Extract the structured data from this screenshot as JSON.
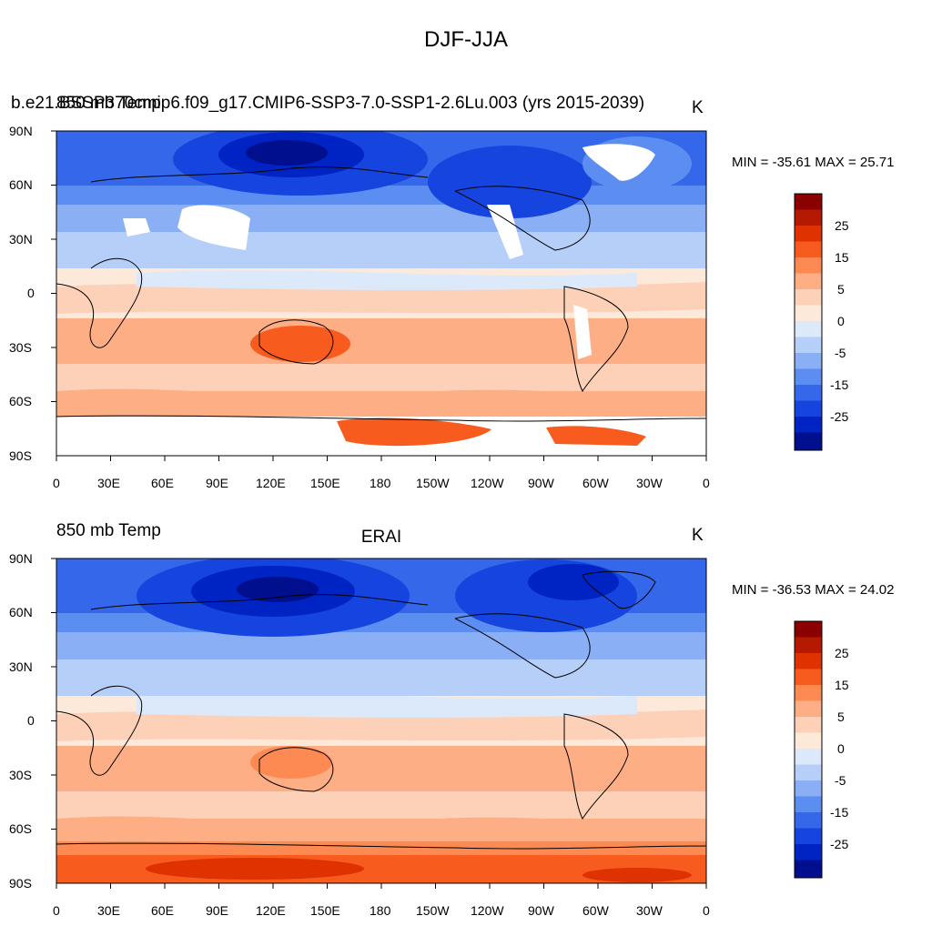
{
  "title": "DJF-JJA",
  "panels": [
    {
      "left_label": "850 mb Temp",
      "left_label_overlap": "b.e21.BSSP370cmip6.f09_g17.CMIP6-SSP3-7.0-SSP1-2.6Lu.003 (yrs 2015-2039)",
      "center_label": "",
      "right_label": "K",
      "minmax": "MIN = -35.61 MAX =  25.71"
    },
    {
      "left_label": "850 mb Temp",
      "center_label": "ERAI",
      "right_label": "K",
      "minmax": "MIN = -36.53 MAX =  24.02"
    }
  ],
  "lat_labels": [
    "90N",
    "60N",
    "30N",
    "0",
    "30S",
    "60S",
    "90S"
  ],
  "lon_labels": [
    "0",
    "30E",
    "60E",
    "90E",
    "120E",
    "150E",
    "180",
    "150W",
    "120W",
    "90W",
    "60W",
    "30W",
    "0"
  ],
  "colorbar": {
    "labels": [
      "25",
      "15",
      "5",
      "0",
      "-5",
      "-15",
      "-25"
    ],
    "colors": [
      "#8b0000",
      "#b51a00",
      "#e03200",
      "#f75b1d",
      "#fc8a52",
      "#fdae85",
      "#fdd1b8",
      "#fde9da",
      "#dce9fa",
      "#b6cff8",
      "#8aaff5",
      "#5c8ef2",
      "#3467ea",
      "#1644df",
      "#0024c4",
      "#000f8e"
    ]
  },
  "chart_data": {
    "type": "heatmap",
    "title": "DJF-JJA",
    "variable": "850 mb Temp",
    "units": "K",
    "colorbar_levels": [
      -35,
      -30,
      -25,
      -20,
      -15,
      -10,
      -5,
      -2,
      0,
      2,
      5,
      10,
      15,
      20,
      25,
      30
    ],
    "lat_ticks": [
      "90N",
      "60N",
      "30N",
      "0",
      "30S",
      "60S",
      "90S"
    ],
    "lon_ticks": [
      "0",
      "30E",
      "60E",
      "90E",
      "120E",
      "150E",
      "180",
      "150W",
      "120W",
      "90W",
      "60W",
      "30W",
      "0"
    ],
    "panels": [
      {
        "name": "b.e21.BSSP370cmip6.f09_g17.CMIP6-SSP3-7.0-SSP1-2.6Lu.003 (yrs 2015-2039)",
        "min": -35.61,
        "max": 25.71
      },
      {
        "name": "ERAI",
        "min": -36.53,
        "max": 24.02
      }
    ]
  }
}
